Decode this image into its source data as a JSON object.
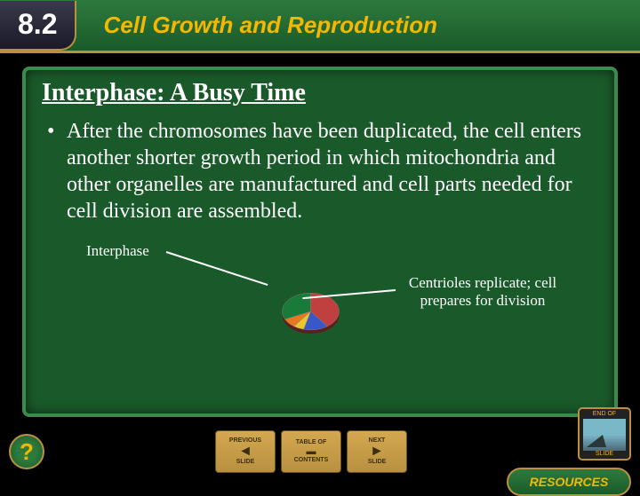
{
  "header": {
    "section_number": "8.2",
    "chapter_title": "Cell Growth and Reproduction"
  },
  "slide": {
    "title": "Interphase: A Busy Time",
    "bullet": "After the chromosomes have been duplicated, the cell enters another shorter growth period in which mitochondria and other organelles are manufactured and cell parts needed for cell division are assembled.",
    "label_left": "Interphase",
    "label_right": "Centrioles replicate; cell prepares for division"
  },
  "pie": {
    "type": "pie",
    "slices": [
      {
        "color": "#c04040",
        "fraction": 0.4
      },
      {
        "color": "#3858c8",
        "fraction": 0.14
      },
      {
        "color": "#e8c830",
        "fraction": 0.06
      },
      {
        "color": "#e87820",
        "fraction": 0.08
      },
      {
        "color": "#1a7a3a",
        "fraction": 0.32
      }
    ],
    "border_color": "#888888",
    "tilt_scale_y": 0.65,
    "radius": 40
  },
  "nav": {
    "previous": {
      "top": "PREVIOUS",
      "bottom": "SLIDE",
      "arrow": "◄"
    },
    "contents": {
      "top": "TABLE OF",
      "bottom": "CONTENTS",
      "arrow": ""
    },
    "next": {
      "top": "NEXT",
      "bottom": "SLIDE",
      "arrow": "►"
    }
  },
  "footer": {
    "help": "?",
    "end_of_slide_top": "END OF",
    "end_of_slide_bottom": "SLIDE",
    "resources": "RESOURCES"
  },
  "colors": {
    "bg": "#000000",
    "panel": "#1a5a2a",
    "panel_border": "#3d8a4d",
    "header_grad_top": "#2d7a3d",
    "header_grad_bottom": "#1a5a2a",
    "accent_gold": "#f5b800",
    "gold_border": "#b89040"
  }
}
